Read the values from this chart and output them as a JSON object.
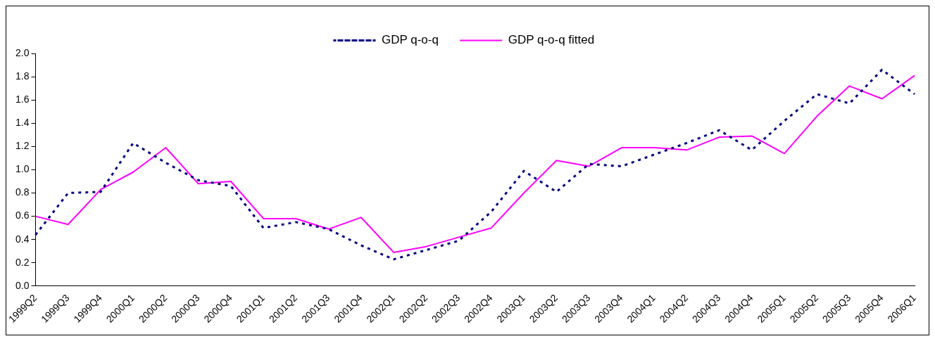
{
  "chart_data": {
    "type": "line",
    "categories": [
      "1999Q2",
      "1999Q3",
      "1999Q4",
      "2000Q1",
      "2000Q2",
      "2000Q3",
      "2000Q4",
      "2001Q1",
      "2001Q2",
      "2001Q3",
      "2001Q4",
      "2002Q1",
      "2002Q2",
      "2002Q3",
      "2002Q4",
      "2003Q1",
      "2003Q2",
      "2003Q3",
      "2003Q4",
      "2004Q1",
      "2004Q2",
      "2004Q3",
      "2004Q4",
      "2005Q1",
      "2005Q2",
      "2005Q3",
      "2005Q4",
      "2006Q1"
    ],
    "series": [
      {
        "name": "GDP q-o-q",
        "color": "#000080",
        "line_style": "dotted",
        "values": [
          0.44,
          0.8,
          0.81,
          1.23,
          1.06,
          0.91,
          0.86,
          0.5,
          0.55,
          0.49,
          0.35,
          0.23,
          0.31,
          0.39,
          0.64,
          0.99,
          0.81,
          1.05,
          1.03,
          1.13,
          1.23,
          1.34,
          1.17,
          1.42,
          1.65,
          1.57,
          1.86,
          1.65
        ]
      },
      {
        "name": "GDP q-o-q fitted",
        "color": "#ff00ff",
        "line_style": "solid",
        "values": [
          0.6,
          0.53,
          0.83,
          0.98,
          1.19,
          0.88,
          0.9,
          0.58,
          0.58,
          0.49,
          0.59,
          0.29,
          0.34,
          0.42,
          0.5,
          0.8,
          1.08,
          1.03,
          1.19,
          1.19,
          1.17,
          1.28,
          1.29,
          1.14,
          1.46,
          1.72,
          1.61,
          1.81
        ]
      }
    ],
    "ylim": [
      0,
      2.0
    ],
    "yticks": [
      {
        "value": 0,
        "label": "0.0"
      },
      {
        "value": 0.2,
        "label": "0.2"
      },
      {
        "value": 0.4,
        "label": "0.4"
      },
      {
        "value": 0.6,
        "label": "0.6"
      },
      {
        "value": 0.8,
        "label": "0.8"
      },
      {
        "value": 1.0,
        "label": "1.0"
      },
      {
        "value": 1.2,
        "label": "1.2"
      },
      {
        "value": 1.4,
        "label": "1.4"
      },
      {
        "value": 1.6,
        "label": "1.6"
      },
      {
        "value": 1.8,
        "label": "1.8"
      },
      {
        "value": 2.0,
        "label": "2.0"
      }
    ],
    "grid": false,
    "legend": "top",
    "marker": "none"
  }
}
